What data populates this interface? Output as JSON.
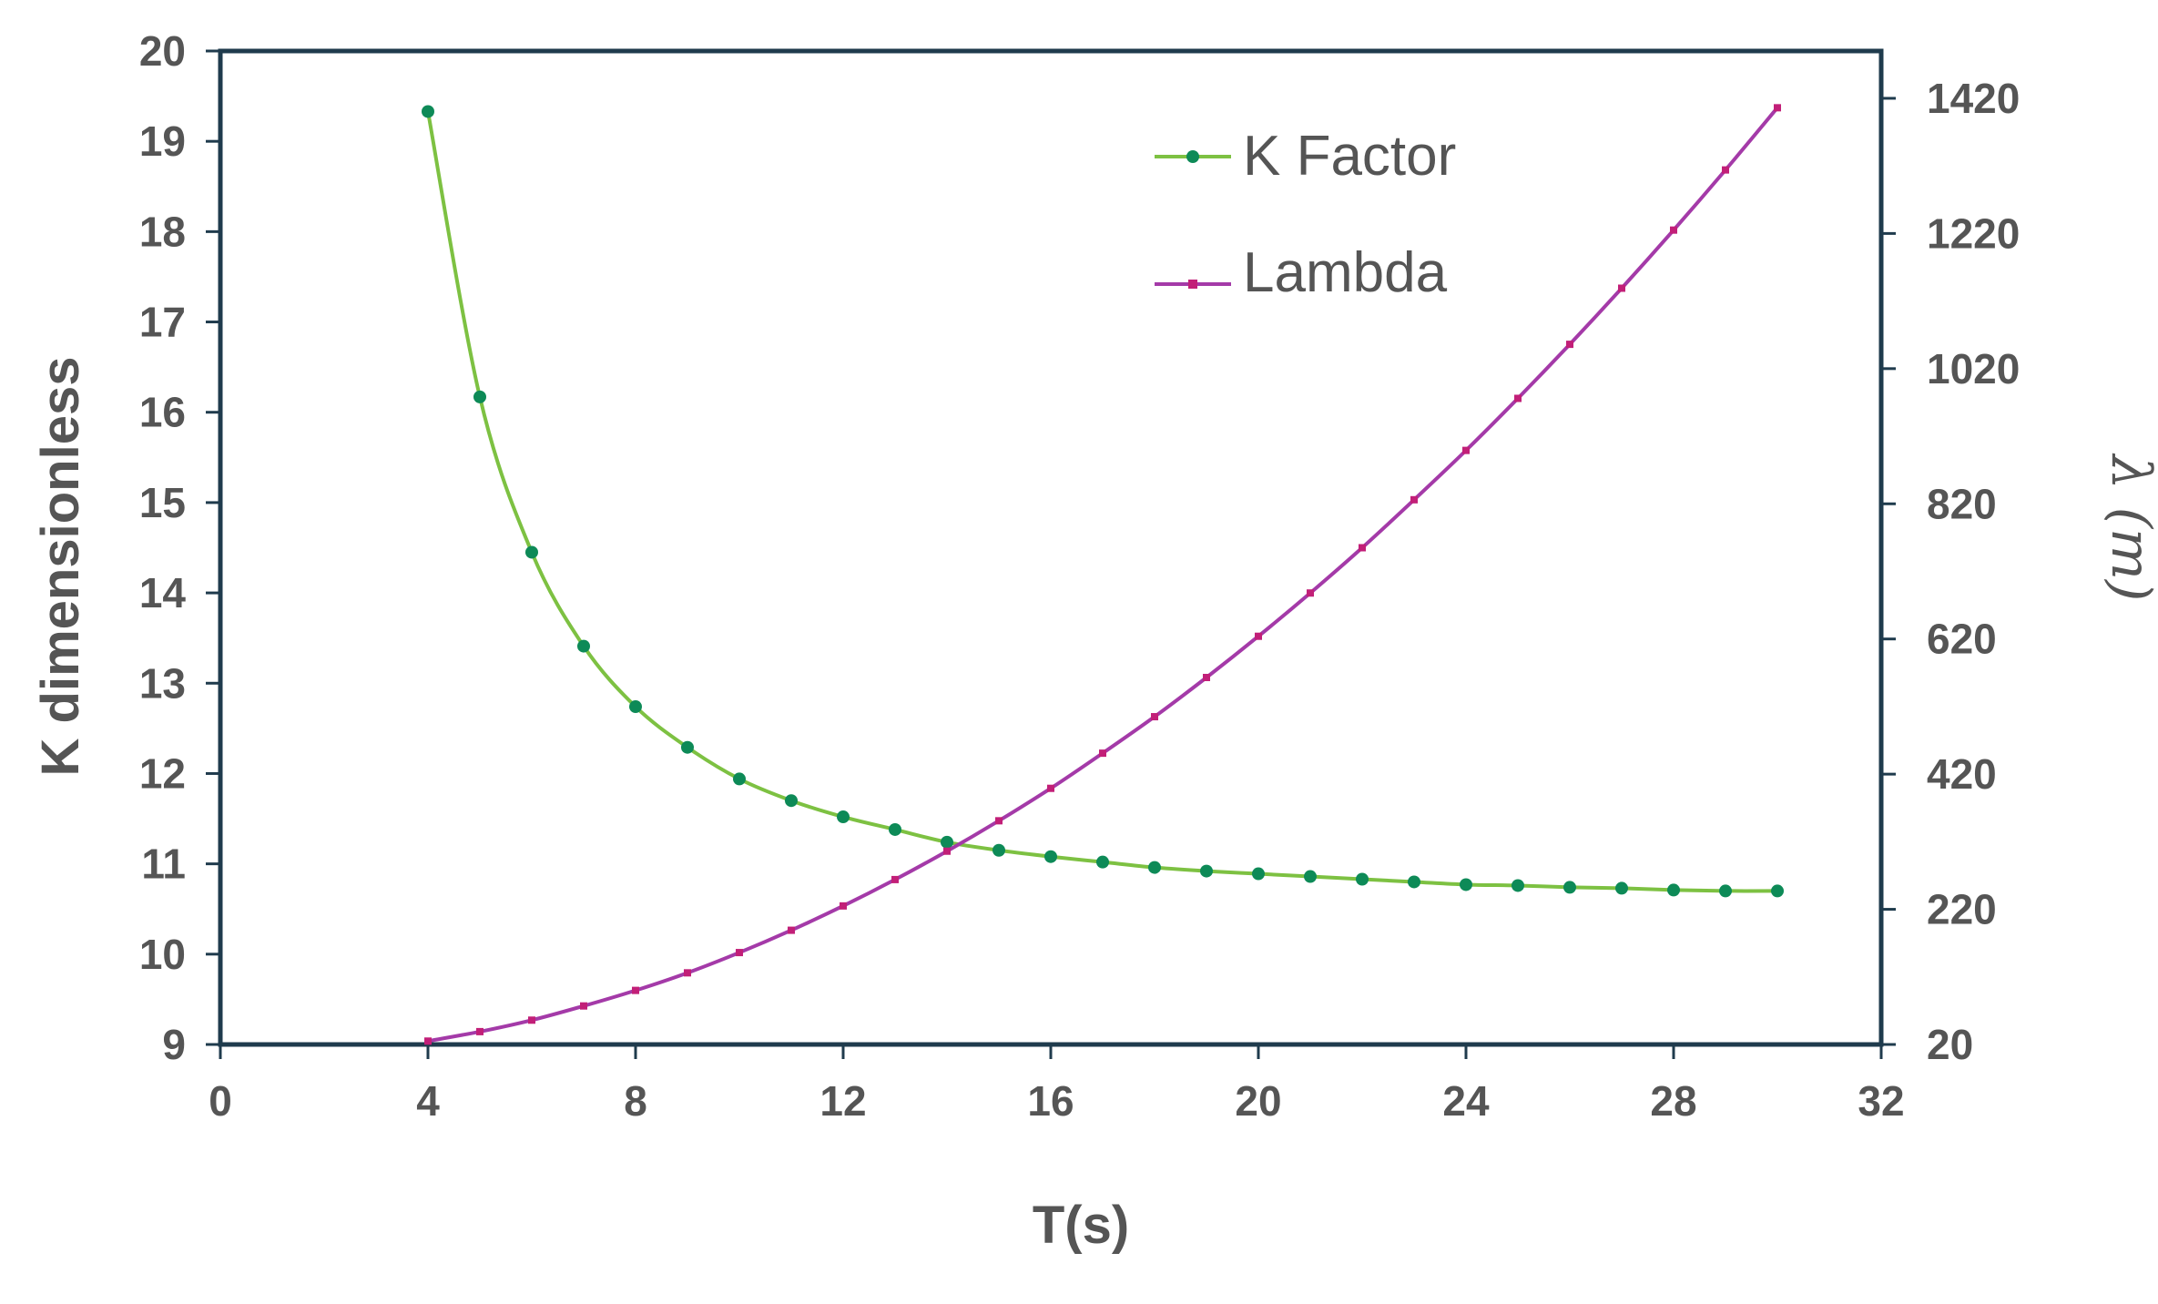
{
  "colors": {
    "k_factor_line": "#7dc142",
    "k_factor_marker": "#0d8a57",
    "lambda_line": "#a43aa8",
    "lambda_marker": "#c21f78",
    "axis": "#1f3b4d",
    "text": "#555555"
  },
  "chart_data": {
    "type": "line",
    "x": [
      4,
      5,
      6,
      7,
      8,
      9,
      10,
      11,
      12,
      13,
      14,
      15,
      16,
      17,
      18,
      19,
      20,
      21,
      22,
      23,
      24,
      25,
      26,
      27,
      28,
      29,
      30
    ],
    "series": [
      {
        "name": "K Factor",
        "axis": "left",
        "marker": "circle",
        "values": [
          19.33,
          16.17,
          14.45,
          13.41,
          12.74,
          12.29,
          11.94,
          11.7,
          11.52,
          11.38,
          11.24,
          11.15,
          11.08,
          11.02,
          10.96,
          10.92,
          10.89,
          10.86,
          10.83,
          10.8,
          10.77,
          10.76,
          10.74,
          10.73,
          10.71,
          10.7,
          10.7
        ]
      },
      {
        "name": "Lambda",
        "axis": "right",
        "marker": "square",
        "values": [
          25,
          39,
          56,
          77,
          100,
          126,
          156,
          189,
          225,
          264,
          306,
          351,
          399,
          451,
          505,
          563,
          624,
          688,
          755,
          826,
          899,
          976,
          1056,
          1139,
          1225,
          1314,
          1406
        ]
      }
    ],
    "xlabel": "T(s)",
    "ylabel": "K dimensionless",
    "y2label": "λ (m)",
    "xlim": [
      0,
      32
    ],
    "ylim": [
      9,
      20
    ],
    "y2lim": [
      20,
      1490
    ],
    "xticks": [
      0,
      4,
      8,
      12,
      16,
      20,
      24,
      28,
      32
    ],
    "yticks": [
      9,
      10,
      11,
      12,
      13,
      14,
      15,
      16,
      17,
      18,
      19,
      20
    ],
    "y2ticks": [
      20,
      220,
      420,
      620,
      820,
      1020,
      1220,
      1420
    ],
    "grid": false,
    "legend": "top-right"
  }
}
